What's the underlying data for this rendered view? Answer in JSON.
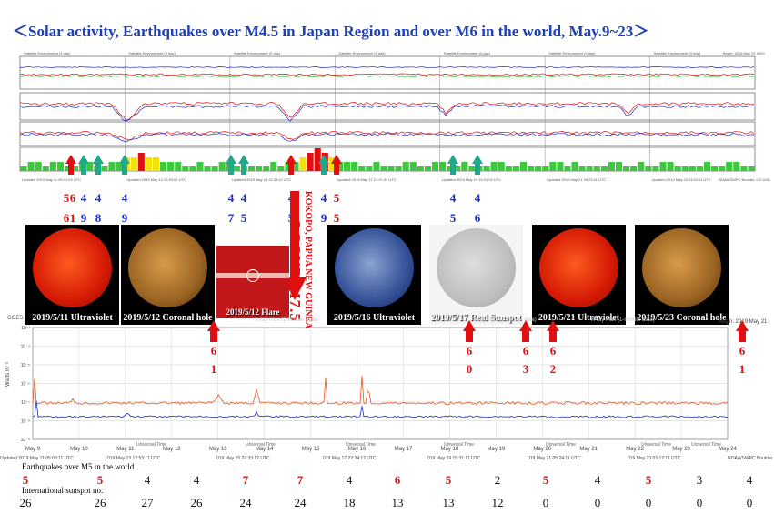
{
  "title": "＜Solar activity, Earthquakes over M4.5 in Japan Region and over M6 in the world, May.9~23＞",
  "colors": {
    "title": "#1f3fb4",
    "red": "#e01010",
    "blue": "#1a2ad8",
    "teal": "#1fa88a",
    "green": "#3ec83e",
    "yellow": "#f5e10a"
  },
  "top_panel": {
    "header_labels": [
      "Satellite Environment (3 day)",
      "Satellite Environment (3 day)",
      "Satellite Environment (3 day)",
      "Satellite Environment (3 day)",
      "Satellite Environment (3 day)",
      "Satellite Environment (3 day)",
      "Satellite Environment (3 day)",
      "Begin: 2019 May 21 0000"
    ],
    "footer_labels": [
      "Updated 2019 May 11 05:01:03 UTC",
      "Updated 2019 May 13 12:53:02 UTC",
      "Updated 2019 May 15 22:33:12 UTC",
      "Updated 2019 May 17 21:37:02 UTC",
      "Updated 2019 May 19 15:31:02 UTC",
      "Updated 2019 May 21 05:23:11 UTC",
      "Updated 2019 May 23 03:12:11 UTC",
      "NOAA/SWPC Boulder, CO USA"
    ],
    "kp_bars": [
      1,
      2,
      2,
      1,
      2,
      2,
      1,
      1,
      2,
      2,
      1,
      1,
      2,
      2,
      3,
      3,
      4,
      3,
      3,
      2,
      2,
      2,
      1,
      1,
      2,
      1,
      1,
      2,
      2,
      1,
      1,
      1,
      1,
      1,
      2,
      1,
      2,
      2,
      3,
      4,
      5,
      4,
      3,
      2,
      2,
      2,
      1,
      1,
      2,
      1,
      1,
      1,
      2,
      2,
      1,
      1,
      2,
      2,
      1,
      1,
      2,
      1,
      1,
      1,
      2,
      2,
      1,
      1,
      2,
      1,
      1,
      1,
      2,
      2,
      1,
      2,
      1,
      1,
      1,
      1,
      2,
      2,
      1,
      1,
      2,
      1,
      1,
      2,
      2,
      1,
      1,
      1,
      1,
      2,
      1,
      1,
      2,
      2,
      1,
      1
    ]
  },
  "japan_quakes": [
    {
      "top": "5",
      "bottom": "6",
      "color": "red"
    },
    {
      "top": "6",
      "bottom": "1",
      "color": "red"
    },
    {
      "top": "4",
      "bottom": "9",
      "color": "blue"
    },
    {
      "top": "4",
      "bottom": "8",
      "color": "blue"
    },
    {
      "top": "4",
      "bottom": "9",
      "color": "blue"
    },
    {
      "top": "4",
      "bottom": "7",
      "color": "blue"
    },
    {
      "top": "4",
      "bottom": "5",
      "color": "blue"
    },
    {
      "top": "4",
      "bottom": "5",
      "color": "blue"
    },
    {
      "top": "4",
      "bottom": "9",
      "color": "blue"
    },
    {
      "top": "5",
      "bottom": "5",
      "color": "red"
    },
    {
      "top": "4",
      "bottom": "5",
      "color": "blue"
    },
    {
      "top": "4",
      "bottom": "6",
      "color": "blue"
    }
  ],
  "occur_label": "OCCUR M7.5",
  "occur_place": "KOKOPO, PAPUA NEW GUINEA",
  "photos": [
    {
      "label": "2019/5/11 Ultraviolet",
      "kind": "red"
    },
    {
      "label": "2019/5/12 Coronal hole",
      "kind": "gold"
    },
    {
      "label": "2019/5/12 Flare",
      "kind": "flare"
    },
    {
      "label": "2019/5/16 Ultraviolet",
      "kind": "blue"
    },
    {
      "label": "2019/5/17 Real Sunspot",
      "kind": "white"
    },
    {
      "label": "2019/5/21 Ultraviolet",
      "kind": "red"
    },
    {
      "label": "2019/5/23 Coronal hole",
      "kind": "gold"
    }
  ],
  "world_quakes": [
    {
      "top": "6",
      "bottom": "1"
    },
    {
      "top": "6",
      "bottom": "0"
    },
    {
      "top": "6",
      "bottom": "3"
    },
    {
      "top": "6",
      "bottom": "2"
    },
    {
      "top": "6",
      "bottom": "1"
    }
  ],
  "xray": {
    "header_left": "GOES",
    "header_faded": [
      "X-ray Flux (1-minute data)",
      "X-ray Flux (1-minute data)",
      "X-ray Flux (1-minute data)"
    ],
    "begin": "Begin: 2019 May 21",
    "y_label": "Watts m⁻²",
    "y_ticks": [
      "10⁻³",
      "10⁻⁴",
      "10⁻⁵",
      "10⁻⁶",
      "10⁻⁷",
      "10⁻⁸",
      "10⁻⁹"
    ],
    "dates": [
      "May 9",
      "May 10",
      "May 11",
      "May 12",
      "May 13",
      "May 14",
      "May 15",
      "May 16",
      "May 17",
      "May 18",
      "May 19",
      "May 20",
      "May 21",
      "May 22",
      "May 23",
      "May 24"
    ],
    "universal_time": "Universal Time",
    "footer": [
      "Updated 2019 May 11 05:03:11 UTC",
      "019 May 13 12:53:11 UTC",
      "019 May 15 22:33:12 UTC",
      "019 May 17 22:34:12 UTC",
      "019 May 19 15:31:11 UTC",
      "019 May 21 05:24:11 UTC",
      "019 May 23 03:12:11 UTC",
      "NOAA/SWPC Boulder"
    ]
  },
  "bottom": {
    "quake_title": "Earthquakes over M5 in the world",
    "quake_counts": [
      {
        "v": "5",
        "c": "red"
      },
      {
        "v": "5",
        "c": "red"
      },
      {
        "v": "4",
        "c": "black"
      },
      {
        "v": "4",
        "c": "black"
      },
      {
        "v": "7",
        "c": "red"
      },
      {
        "v": "7",
        "c": "red"
      },
      {
        "v": "4",
        "c": "black"
      },
      {
        "v": "6",
        "c": "red"
      },
      {
        "v": "5",
        "c": "red"
      },
      {
        "v": "2",
        "c": "black"
      },
      {
        "v": "5",
        "c": "red"
      },
      {
        "v": "4",
        "c": "black"
      },
      {
        "v": "5",
        "c": "red"
      },
      {
        "v": "3",
        "c": "black"
      },
      {
        "v": "4",
        "c": "black"
      }
    ],
    "sunspot_title": "International sunspot no.",
    "sunspot_counts": [
      "26",
      "26",
      "27",
      "26",
      "24",
      "24",
      "18",
      "13",
      "13",
      "12",
      "0",
      "0",
      "0",
      "0",
      "0"
    ]
  }
}
